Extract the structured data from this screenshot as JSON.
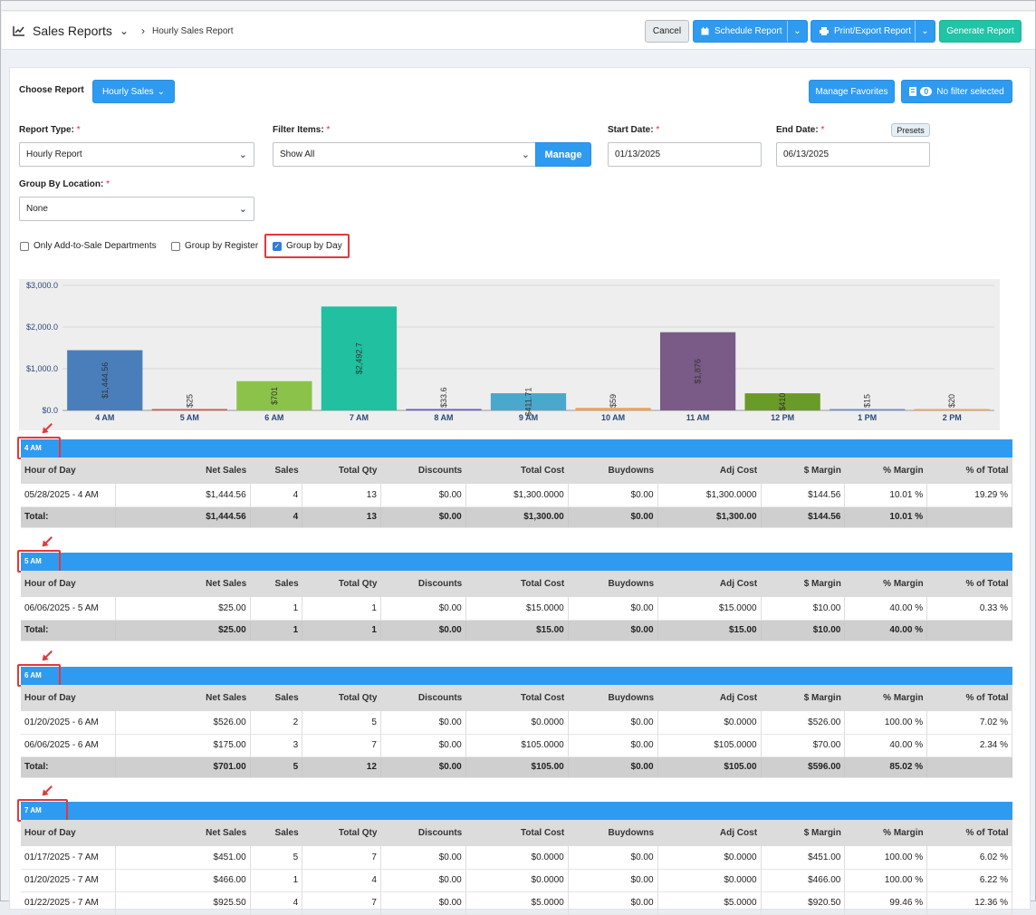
{
  "header": {
    "title": "Sales Reports",
    "breadcrumb": "Hourly Sales Report",
    "cancel_label": "Cancel",
    "schedule_label": "Schedule Report",
    "print_label": "Print/Export Report",
    "generate_label": "Generate Report"
  },
  "choose": {
    "label": "Choose Report",
    "value": "Hourly Sales",
    "manage_favorites": "Manage Favorites",
    "filter_count": "0",
    "filter_text": "No filter selected"
  },
  "form": {
    "report_type_label": "Report Type:",
    "report_type_value": "Hourly Report",
    "filter_items_label": "Filter Items:",
    "filter_items_value": "Show All",
    "manage_label": "Manage",
    "start_label": "Start Date:",
    "start_value": "01/13/2025",
    "end_label": "End Date:",
    "end_value": "06/13/2025",
    "presets_label": "Presets",
    "group_loc_label": "Group By Location:",
    "group_loc_value": "None",
    "req": "*",
    "opt_add_to_sale": "Only Add-to-Sale Departments",
    "opt_group_register": "Group by Register",
    "opt_group_day": "Group by Day"
  },
  "chart_data": {
    "type": "bar",
    "categories": [
      "4 AM",
      "5 AM",
      "6 AM",
      "7 AM",
      "8 AM",
      "9 AM",
      "10 AM",
      "11 AM",
      "12 PM",
      "1 PM",
      "2 PM"
    ],
    "values": [
      1444.56,
      25,
      701,
      2492.7,
      33.6,
      411.71,
      59,
      1876,
      410,
      15,
      20
    ],
    "data_labels": [
      "$1,444.56",
      "$25",
      "$701",
      "$2,492.7",
      "$33.6",
      "$411.71",
      "$59",
      "$1,876",
      "$410",
      "$15",
      "$20"
    ],
    "colors": [
      "#4a7ebb",
      "#d9534f",
      "#8bc34a",
      "#20c0a0",
      "#6a5acd",
      "#4aa8cc",
      "#f0a050",
      "#7a5a86",
      "#6a9a28",
      "#6c8cd5",
      "#f0a050"
    ],
    "y_ticks": [
      "$0.0",
      "$1,000.0",
      "$2,000.0",
      "$3,000.0"
    ],
    "ylim": [
      0,
      3000
    ],
    "grid": true
  },
  "columns": [
    "Hour of Day",
    "Net Sales",
    "Sales",
    "Total Qty",
    "Discounts",
    "Total Cost",
    "Buydowns",
    "Adj Cost",
    "$ Margin",
    "% Margin",
    "% of Total"
  ],
  "groups": [
    {
      "name": "4 AM",
      "rows": [
        [
          "05/28/2025 - 4 AM",
          "$1,444.56",
          "4",
          "13",
          "$0.00",
          "$1,300.0000",
          "$0.00",
          "$1,300.0000",
          "$144.56",
          "10.01 %",
          "19.29 %"
        ]
      ],
      "total": [
        "Total:",
        "$1,444.56",
        "4",
        "13",
        "$0.00",
        "$1,300.00",
        "$0.00",
        "$1,300.00",
        "$144.56",
        "10.01 %",
        ""
      ]
    },
    {
      "name": "5 AM",
      "rows": [
        [
          "06/06/2025 - 5 AM",
          "$25.00",
          "1",
          "1",
          "$0.00",
          "$15.0000",
          "$0.00",
          "$15.0000",
          "$10.00",
          "40.00 %",
          "0.33 %"
        ]
      ],
      "total": [
        "Total:",
        "$25.00",
        "1",
        "1",
        "$0.00",
        "$15.00",
        "$0.00",
        "$15.00",
        "$10.00",
        "40.00 %",
        ""
      ]
    },
    {
      "name": "6 AM",
      "rows": [
        [
          "01/20/2025 - 6 AM",
          "$526.00",
          "2",
          "5",
          "$0.00",
          "$0.0000",
          "$0.00",
          "$0.0000",
          "$526.00",
          "100.00 %",
          "7.02 %"
        ],
        [
          "06/06/2025 - 6 AM",
          "$175.00",
          "3",
          "7",
          "$0.00",
          "$105.0000",
          "$0.00",
          "$105.0000",
          "$70.00",
          "40.00 %",
          "2.34 %"
        ]
      ],
      "total": [
        "Total:",
        "$701.00",
        "5",
        "12",
        "$0.00",
        "$105.00",
        "$0.00",
        "$105.00",
        "$596.00",
        "85.02 %",
        ""
      ]
    },
    {
      "name": "7 AM",
      "rows": [
        [
          "01/17/2025 - 7 AM",
          "$451.00",
          "5",
          "7",
          "$0.00",
          "$0.0000",
          "$0.00",
          "$0.0000",
          "$451.00",
          "100.00 %",
          "6.02 %"
        ],
        [
          "01/20/2025 - 7 AM",
          "$466.00",
          "1",
          "4",
          "$0.00",
          "$0.0000",
          "$0.00",
          "$0.0000",
          "$466.00",
          "100.00 %",
          "6.22 %"
        ],
        [
          "01/22/2025 - 7 AM",
          "$925.50",
          "4",
          "7",
          "$0.00",
          "$5.0000",
          "$0.00",
          "$5.0000",
          "$920.50",
          "99.46 %",
          "12.36 %"
        ]
      ],
      "total": null
    }
  ]
}
